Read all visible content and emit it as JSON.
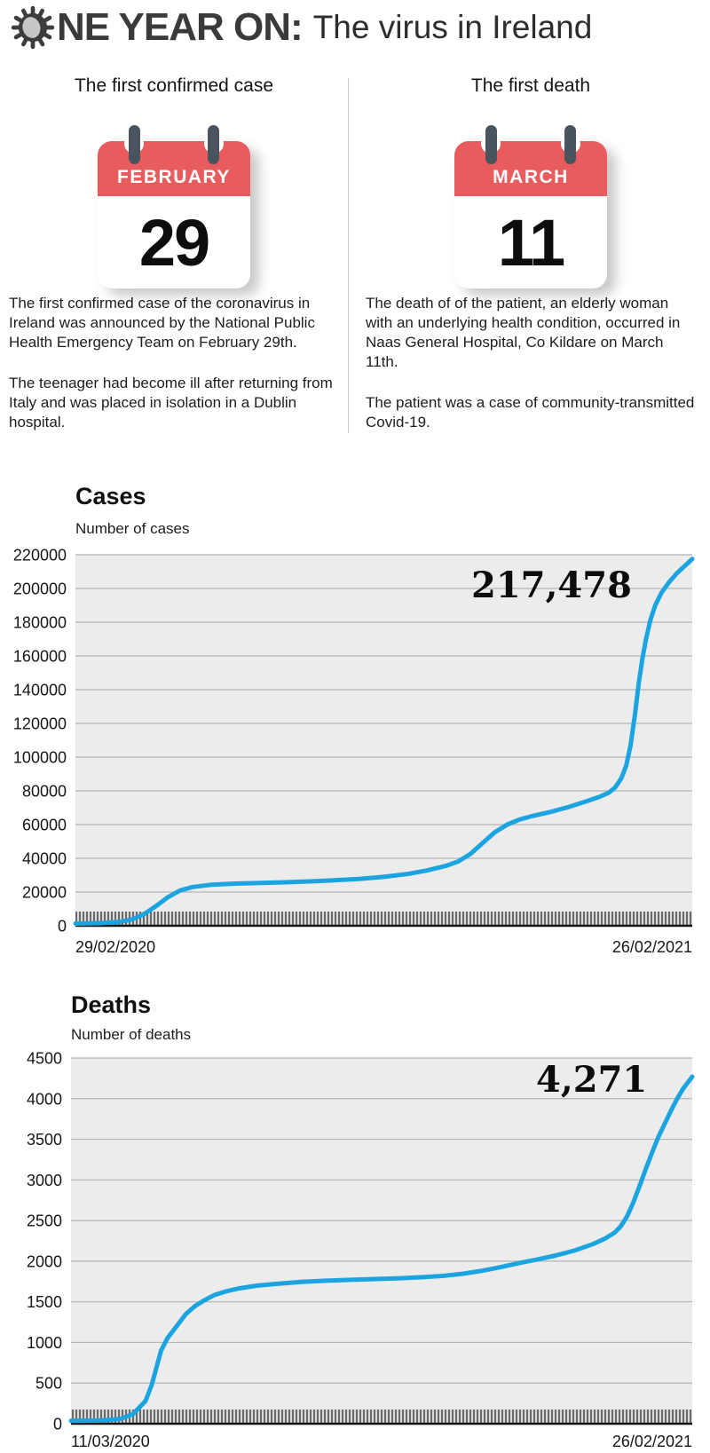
{
  "header": {
    "title_bold": "NE YEAR ON:",
    "title_rest": "The virus in Ireland"
  },
  "first_case": {
    "heading": "The first confirmed case",
    "calendar": {
      "month": "FEBRUARY",
      "day": "29"
    },
    "paragraphs": [
      "The first confirmed case of the coronavirus in Ireland was announced by the National Public Health Emergency Team on February 29th.",
      "The teenager had become ill after returning from Italy and was placed in isolation in a Dublin hospital."
    ]
  },
  "first_death": {
    "heading": "The first death",
    "calendar": {
      "month": "MARCH",
      "day": "11"
    },
    "paragraphs": [
      "The death of of the patient, an elderly woman with an underlying health condition, occurred in Naas General Hospital, Co Kildare on March 11th.",
      "The patient was a case of community-transmitted Covid-19."
    ]
  },
  "colors": {
    "accent_blue": "#1ba4e0",
    "calendar_red": "#e85c5e",
    "peg_gray": "#4a545e",
    "chart_bg": "#ececec",
    "grid": "#b4b4b4",
    "baseline": "#161616"
  },
  "chart_data": [
    {
      "type": "line",
      "title": "Cases",
      "ylabel": "Number of cases",
      "annotation": "217,478",
      "final_value": 217478,
      "x_start_label": "29/02/2020",
      "x_end_label": "26/02/2021",
      "ylim": [
        0,
        220000
      ],
      "yticks": [
        0,
        20000,
        40000,
        60000,
        80000,
        100000,
        120000,
        140000,
        160000,
        180000,
        200000,
        220000
      ],
      "grid": true,
      "line_color": "#1ba4e0",
      "points": [
        [
          0,
          1300
        ],
        [
          0.04,
          1600
        ],
        [
          0.07,
          2200
        ],
        [
          0.09,
          3600
        ],
        [
          0.11,
          6500
        ],
        [
          0.13,
          11500
        ],
        [
          0.15,
          17000
        ],
        [
          0.17,
          21000
        ],
        [
          0.19,
          23000
        ],
        [
          0.22,
          24300
        ],
        [
          0.26,
          25000
        ],
        [
          0.3,
          25400
        ],
        [
          0.34,
          25800
        ],
        [
          0.38,
          26300
        ],
        [
          0.42,
          27000
        ],
        [
          0.46,
          27800
        ],
        [
          0.5,
          29000
        ],
        [
          0.54,
          30800
        ],
        [
          0.57,
          32800
        ],
        [
          0.6,
          35500
        ],
        [
          0.62,
          38000
        ],
        [
          0.64,
          42500
        ],
        [
          0.66,
          49000
        ],
        [
          0.68,
          55500
        ],
        [
          0.7,
          60000
        ],
        [
          0.72,
          63000
        ],
        [
          0.74,
          65000
        ],
        [
          0.77,
          67500
        ],
        [
          0.8,
          70500
        ],
        [
          0.83,
          74000
        ],
        [
          0.85,
          76500
        ],
        [
          0.865,
          79000
        ],
        [
          0.875,
          82000
        ],
        [
          0.885,
          87500
        ],
        [
          0.893,
          95000
        ],
        [
          0.9,
          107000
        ],
        [
          0.907,
          125000
        ],
        [
          0.913,
          143000
        ],
        [
          0.919,
          158000
        ],
        [
          0.925,
          170000
        ],
        [
          0.932,
          181000
        ],
        [
          0.94,
          190000
        ],
        [
          0.95,
          197500
        ],
        [
          0.962,
          203500
        ],
        [
          0.975,
          209000
        ],
        [
          0.988,
          213500
        ],
        [
          1,
          217478
        ]
      ]
    },
    {
      "type": "line",
      "title": "Deaths",
      "ylabel": "Number of deaths",
      "annotation": "4,271",
      "final_value": 4271,
      "x_start_label": "11/03/2020",
      "x_end_label": "26/02/2021",
      "ylim": [
        0,
        4500
      ],
      "yticks": [
        0,
        500,
        1000,
        1500,
        2000,
        2500,
        3000,
        3500,
        4000,
        4500
      ],
      "grid": true,
      "line_color": "#1ba4e0",
      "points": [
        [
          0,
          35
        ],
        [
          0.05,
          40
        ],
        [
          0.08,
          60
        ],
        [
          0.1,
          120
        ],
        [
          0.12,
          280
        ],
        [
          0.13,
          480
        ],
        [
          0.145,
          900
        ],
        [
          0.155,
          1050
        ],
        [
          0.17,
          1200
        ],
        [
          0.185,
          1350
        ],
        [
          0.2,
          1450
        ],
        [
          0.215,
          1520
        ],
        [
          0.23,
          1580
        ],
        [
          0.25,
          1630
        ],
        [
          0.27,
          1665
        ],
        [
          0.3,
          1700
        ],
        [
          0.33,
          1720
        ],
        [
          0.37,
          1745
        ],
        [
          0.41,
          1760
        ],
        [
          0.45,
          1770
        ],
        [
          0.49,
          1780
        ],
        [
          0.53,
          1790
        ],
        [
          0.57,
          1805
        ],
        [
          0.6,
          1820
        ],
        [
          0.63,
          1845
        ],
        [
          0.66,
          1880
        ],
        [
          0.69,
          1925
        ],
        [
          0.72,
          1975
        ],
        [
          0.75,
          2020
        ],
        [
          0.78,
          2070
        ],
        [
          0.81,
          2130
        ],
        [
          0.84,
          2210
        ],
        [
          0.86,
          2280
        ],
        [
          0.875,
          2350
        ],
        [
          0.885,
          2430
        ],
        [
          0.895,
          2550
        ],
        [
          0.905,
          2720
        ],
        [
          0.915,
          2920
        ],
        [
          0.925,
          3130
        ],
        [
          0.935,
          3330
        ],
        [
          0.945,
          3520
        ],
        [
          0.955,
          3680
        ],
        [
          0.965,
          3840
        ],
        [
          0.975,
          3990
        ],
        [
          0.985,
          4120
        ],
        [
          0.993,
          4200
        ],
        [
          1,
          4271
        ]
      ]
    }
  ]
}
